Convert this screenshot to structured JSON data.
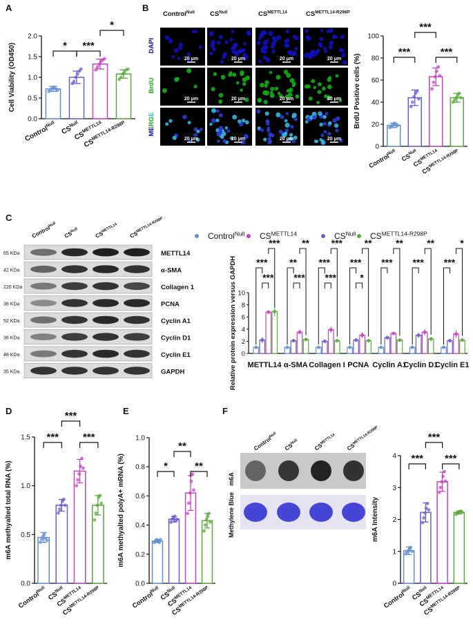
{
  "panel_labels": [
    "A",
    "B",
    "C",
    "D",
    "E",
    "F"
  ],
  "groups": {
    "control": {
      "base": "Control",
      "sup": "Null"
    },
    "cs_null": {
      "base": "CS",
      "sup": "Null"
    },
    "cs_m14": {
      "base": "CS",
      "sup": "METTL14"
    },
    "cs_mut": {
      "base": "CS",
      "sup": "METTL14-R298P"
    }
  },
  "colors": {
    "control": "#5B8FD0",
    "cs_null": "#6A5ACD",
    "cs_m14": "#C63FBF",
    "cs_mut": "#58A83A",
    "dapi": "#1010c0",
    "brdu": "#12b012",
    "merge_d": "#2a3cd6",
    "merge_b": "#33b8e0"
  },
  "sig_stars": {
    "one": "*",
    "two": "**",
    "three": "***"
  },
  "chart_data": [
    {
      "id": "A",
      "type": "bar",
      "ylabel": "Cell Viability (OD450)",
      "yticks": [
        "0.0",
        "0.5",
        "1.0",
        "1.5",
        "2.0"
      ],
      "ylim": [
        0,
        2.0
      ],
      "values": [
        0.72,
        1.0,
        1.32,
        1.08
      ],
      "errors": [
        0.06,
        0.15,
        0.12,
        0.1
      ],
      "points": [
        [
          0.66,
          0.7,
          0.74,
          0.76,
          0.72,
          0.69
        ],
        [
          0.85,
          0.9,
          1.0,
          1.08,
          1.15,
          1.2
        ],
        [
          1.18,
          1.25,
          1.32,
          1.38,
          1.42,
          1.45
        ],
        [
          0.95,
          1.0,
          1.08,
          1.12,
          1.18,
          1.2
        ]
      ],
      "sig": [
        {
          "a": 0,
          "b": 1,
          "label": "*",
          "lvl": 1
        },
        {
          "a": 1,
          "b": 2,
          "label": "***",
          "lvl": 1
        },
        {
          "a": 2,
          "b": 3,
          "label": "*",
          "lvl": 2
        }
      ]
    },
    {
      "id": "B",
      "type": "bar",
      "ylabel": "BrdU Positive cells (%)",
      "yticks": [
        "0",
        "20",
        "40",
        "60",
        "80",
        "100"
      ],
      "ylim": [
        0,
        100
      ],
      "values": [
        19,
        44,
        63,
        44
      ],
      "errors": [
        2,
        7,
        8,
        4
      ],
      "points": [
        [
          17,
          18,
          20,
          21,
          19,
          19
        ],
        [
          36,
          40,
          45,
          48,
          50,
          43
        ],
        [
          52,
          58,
          63,
          68,
          72,
          64
        ],
        [
          40,
          42,
          44,
          46,
          48,
          44
        ]
      ],
      "sig": [
        {
          "a": 0,
          "b": 1,
          "label": "***",
          "lvl": 1
        },
        {
          "a": 2,
          "b": 3,
          "label": "***",
          "lvl": 1
        },
        {
          "a": 1,
          "b": 2,
          "label": "***",
          "lvl": 2
        }
      ]
    },
    {
      "id": "C",
      "type": "bar",
      "ylabel": "Relative protein expression versus GAPDH",
      "yticks": [
        "0",
        "2",
        "4",
        "6",
        "8",
        "10"
      ],
      "ylim": [
        0,
        10
      ],
      "legend": [
        {
          "g": "control",
          "base": "Control",
          "sup": "Null"
        },
        {
          "g": "cs_m14",
          "base": "CS",
          "sup": "METTL14"
        },
        {
          "g": "cs_null",
          "base": "CS",
          "sup": "Null"
        },
        {
          "g": "cs_mut",
          "base": "CS",
          "sup": "METTL14-R298P"
        }
      ],
      "categories": [
        "METTL14",
        "α-SMA",
        "Collagen I",
        "PCNA",
        "Cyclin A1",
        "Cyclin D1",
        "Cyclin E1"
      ],
      "series": [
        {
          "name": "Control Null",
          "g": "control",
          "values": [
            1,
            1,
            1,
            1,
            1,
            1,
            1
          ]
        },
        {
          "name": "CS Null",
          "g": "cs_null",
          "values": [
            2.2,
            2.1,
            2.0,
            2.2,
            2.6,
            3.0,
            2.1
          ]
        },
        {
          "name": "CS METTL14",
          "g": "cs_m14",
          "values": [
            6.8,
            3.5,
            3.9,
            3.0,
            3.3,
            3.5,
            3.2
          ]
        },
        {
          "name": "CS METTL14-R298P",
          "g": "cs_mut",
          "values": [
            6.9,
            2.3,
            2.1,
            2.1,
            2.2,
            2.4,
            2.2
          ]
        }
      ],
      "errors": [
        [
          0.1,
          0.5,
          0.3,
          0.8
        ],
        [
          0.1,
          0.2,
          0.4,
          0.2
        ],
        [
          0.1,
          0.3,
          0.5,
          0.2
        ],
        [
          0.1,
          0.3,
          0.5,
          0.3
        ],
        [
          0.1,
          0.3,
          0.2,
          0.3
        ],
        [
          0.1,
          0.4,
          0.5,
          0.3
        ],
        [
          0.1,
          0.3,
          0.6,
          0.3
        ]
      ],
      "sig": [
        [
          "***",
          "***",
          "***"
        ],
        [
          "**",
          "***",
          "**"
        ],
        [
          "***",
          "***",
          "***"
        ],
        [
          "***",
          "*",
          "**"
        ],
        [
          "***",
          "",
          "**"
        ],
        [
          "***",
          "",
          "**"
        ],
        [
          "***",
          "",
          "*"
        ]
      ]
    },
    {
      "id": "D",
      "type": "bar",
      "ylabel": "m6A methyalted total RNA (%)",
      "yticks": [
        "0.0",
        "0.5",
        "1.0",
        "1.5"
      ],
      "ylim": [
        0,
        1.5
      ],
      "values": [
        0.47,
        0.8,
        1.15,
        0.8
      ],
      "errors": [
        0.05,
        0.06,
        0.12,
        0.1
      ],
      "points": [
        [
          0.42,
          0.45,
          0.48,
          0.5,
          0.46,
          0.44
        ],
        [
          0.72,
          0.76,
          0.8,
          0.84,
          0.86,
          0.8
        ],
        [
          1.0,
          1.06,
          1.12,
          1.2,
          1.28,
          1.18
        ],
        [
          0.65,
          0.72,
          0.8,
          0.88,
          0.9,
          0.82
        ]
      ],
      "sig": [
        {
          "a": 0,
          "b": 1,
          "label": "***",
          "lvl": 1
        },
        {
          "a": 2,
          "b": 3,
          "label": "***",
          "lvl": 1
        },
        {
          "a": 1,
          "b": 2,
          "label": "***",
          "lvl": 2
        }
      ]
    },
    {
      "id": "E",
      "type": "bar",
      "ylabel": "m6A methyalted polyA+ mRNA (%)",
      "yticks": [
        "0.0",
        "0.2",
        "0.4",
        "0.6",
        "0.8",
        "1.0"
      ],
      "ylim": [
        0,
        1.0
      ],
      "values": [
        0.29,
        0.44,
        0.62,
        0.43
      ],
      "errors": [
        0.01,
        0.02,
        0.12,
        0.05
      ],
      "points": [
        [
          0.28,
          0.29,
          0.3,
          0.29,
          0.28,
          0.3
        ],
        [
          0.42,
          0.44,
          0.45,
          0.46,
          0.43,
          0.44
        ],
        [
          0.48,
          0.55,
          0.62,
          0.7,
          0.75,
          0.64
        ],
        [
          0.36,
          0.4,
          0.44,
          0.46,
          0.48,
          0.42
        ]
      ],
      "sig": [
        {
          "a": 0,
          "b": 1,
          "label": "*",
          "lvl": 1
        },
        {
          "a": 2,
          "b": 3,
          "label": "**",
          "lvl": 1
        },
        {
          "a": 1,
          "b": 2,
          "label": "**",
          "lvl": 2
        }
      ]
    },
    {
      "id": "F",
      "type": "bar",
      "ylabel": "m6A Intensity",
      "yticks": [
        "0",
        "1",
        "2",
        "3",
        "4"
      ],
      "ylim": [
        0,
        4
      ],
      "values": [
        1.02,
        2.22,
        3.18,
        2.22
      ],
      "errors": [
        0.12,
        0.3,
        0.3,
        0.05
      ],
      "points": [
        [
          0.92,
          0.98,
          1.02,
          1.08,
          1.12,
          1.0
        ],
        [
          1.9,
          2.05,
          2.2,
          2.35,
          2.5,
          2.3
        ],
        [
          2.85,
          3.0,
          3.18,
          3.35,
          3.5,
          3.2
        ],
        [
          2.16,
          2.2,
          2.22,
          2.24,
          2.26,
          2.22
        ]
      ],
      "sig": [
        {
          "a": 0,
          "b": 1,
          "label": "***",
          "lvl": 1
        },
        {
          "a": 2,
          "b": 3,
          "label": "***",
          "lvl": 1
        },
        {
          "a": 1,
          "b": 2,
          "label": "***",
          "lvl": 2
        }
      ]
    }
  ],
  "panelB": {
    "rows": [
      "DAPI",
      "BrdU",
      "MERGE"
    ],
    "merge_letters": [
      "M",
      "E",
      "R",
      "G",
      "E"
    ],
    "scale": "20 μm"
  },
  "panelC_blot": {
    "rows": [
      {
        "kda": "65 KDa",
        "protein": "METTL14"
      },
      {
        "kda": "42 KDa",
        "protein": "α-SMA"
      },
      {
        "kda": "220 KDa",
        "protein": "Collagen 1"
      },
      {
        "kda": "36 KDa",
        "protein": "PCNA"
      },
      {
        "kda": "52 KDa",
        "protein": "Cyclin A1"
      },
      {
        "kda": "36 KDa",
        "protein": "Cyclin D1"
      },
      {
        "kda": "48 KDa",
        "protein": "Cyclin E1"
      },
      {
        "kda": "35 KDa",
        "protein": "GAPDH"
      }
    ]
  },
  "panelF_blot": {
    "rows": [
      "m6A",
      "Methylene Blue"
    ]
  }
}
